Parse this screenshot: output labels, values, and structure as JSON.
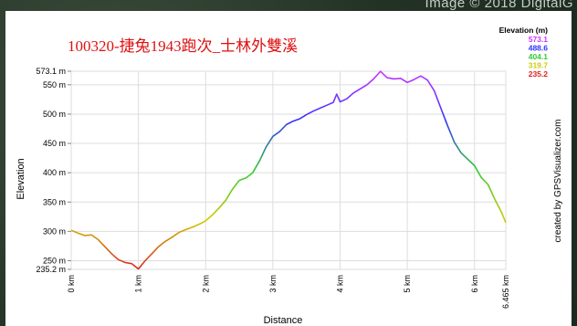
{
  "watermark": "Image © 2018 DigitalG",
  "chart_data": {
    "type": "line",
    "title": "100320-捷兔1943跑次_士林外雙溪",
    "xlabel": "Distance",
    "ylabel": "Elevation",
    "credit": "created by GPSVisualizer.com",
    "xlim": [
      0,
      6.465
    ],
    "ylim": [
      235.2,
      573.1
    ],
    "x_ticks": [
      {
        "value": 0,
        "label": "0 km"
      },
      {
        "value": 1,
        "label": "1 km"
      },
      {
        "value": 2,
        "label": "2 km"
      },
      {
        "value": 3,
        "label": "3 km"
      },
      {
        "value": 4,
        "label": "4 km"
      },
      {
        "value": 5,
        "label": "5 km"
      },
      {
        "value": 6,
        "label": "6 km"
      },
      {
        "value": 6.465,
        "label": "6.465 km"
      }
    ],
    "y_ticks": [
      {
        "value": 573.1,
        "label": "573.1 m"
      },
      {
        "value": 550,
        "label": "550 m"
      },
      {
        "value": 500,
        "label": "500 m"
      },
      {
        "value": 450,
        "label": "450 m"
      },
      {
        "value": 400,
        "label": "400 m"
      },
      {
        "value": 350,
        "label": "350 m"
      },
      {
        "value": 300,
        "label": "300 m"
      },
      {
        "value": 250,
        "label": "250 m"
      },
      {
        "value": 235.2,
        "label": "235.2 m"
      }
    ],
    "legend": {
      "title": "Elevation (m)",
      "placement": "top-right",
      "items": [
        {
          "label": "573.1",
          "color": "#cc33ff"
        },
        {
          "label": "488.6",
          "color": "#3333ff"
        },
        {
          "label": "404.1",
          "color": "#33cc33"
        },
        {
          "label": "319.7",
          "color": "#cccc00"
        },
        {
          "label": "235.2",
          "color": "#dd2222"
        }
      ]
    },
    "grid": true,
    "series": [
      {
        "x": [
          0,
          0.1,
          0.2,
          0.3,
          0.4,
          0.5,
          0.6,
          0.7,
          0.8,
          0.9,
          1.0,
          1.1,
          1.2,
          1.3,
          1.4,
          1.5,
          1.6,
          1.7,
          1.8,
          1.9,
          2.0,
          2.1,
          2.2,
          2.3,
          2.4,
          2.5,
          2.6,
          2.7,
          2.8,
          2.9,
          3.0,
          3.1,
          3.2,
          3.3,
          3.4,
          3.5,
          3.6,
          3.7,
          3.8,
          3.9,
          3.95,
          4.0,
          4.1,
          4.2,
          4.3,
          4.4,
          4.5,
          4.6,
          4.7,
          4.8,
          4.9,
          5.0,
          5.1,
          5.2,
          5.3,
          5.4,
          5.5,
          5.6,
          5.7,
          5.8,
          5.9,
          6.0,
          6.1,
          6.2,
          6.3,
          6.4,
          6.465
        ],
        "y": [
          302,
          297,
          293,
          294,
          286,
          274,
          262,
          252,
          247,
          245,
          236,
          250,
          262,
          274,
          283,
          290,
          298,
          303,
          307,
          312,
          318,
          328,
          340,
          353,
          372,
          387,
          391,
          400,
          420,
          444,
          462,
          470,
          482,
          488,
          492,
          499,
          505,
          510,
          515,
          520,
          534,
          521,
          526,
          536,
          543,
          550,
          560,
          573,
          562,
          560,
          561,
          554,
          559,
          565,
          558,
          540,
          510,
          480,
          452,
          434,
          423,
          412,
          392,
          380,
          355,
          333,
          315
        ]
      }
    ]
  }
}
